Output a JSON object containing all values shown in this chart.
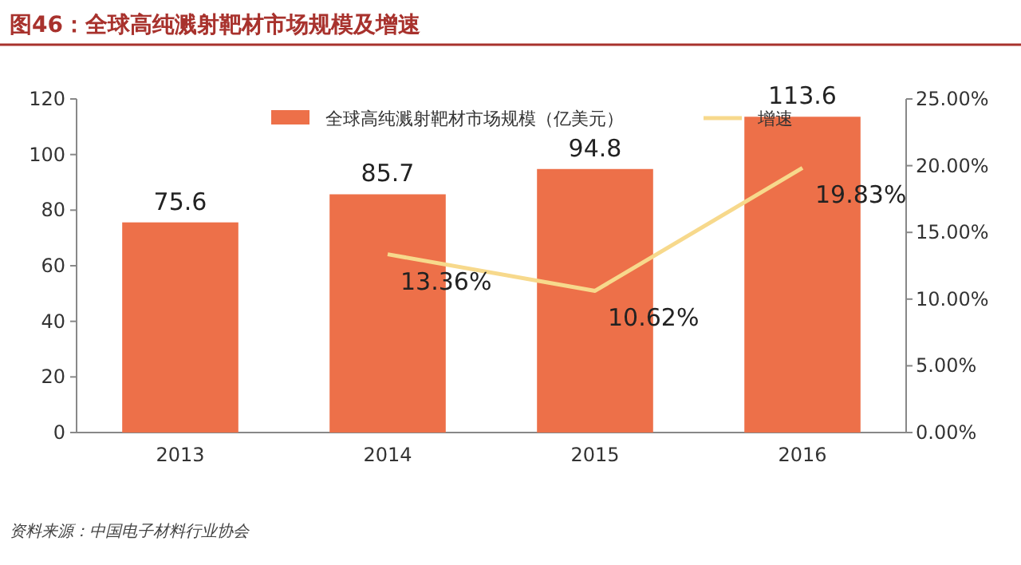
{
  "chart_data": {
    "type": "bar",
    "title": "图46：全球高纯溅射靶材市场规模及增速",
    "categories": [
      "2013",
      "2014",
      "2015",
      "2016"
    ],
    "series": [
      {
        "name": "全球高纯溅射靶材市场规模（亿美元）",
        "color": "#ed7049",
        "values": [
          75.6,
          85.7,
          94.8,
          113.6
        ],
        "value_labels": [
          "75.6",
          "85.7",
          "94.8",
          "113.6"
        ]
      },
      {
        "name": "增速",
        "type": "line",
        "axis": "y2",
        "color": "#f7d98c",
        "values": [
          null,
          13.36,
          10.62,
          19.83
        ],
        "value_labels": [
          null,
          "13.36%",
          "10.62%",
          "19.83%"
        ]
      }
    ],
    "ylim": [
      0,
      120
    ],
    "yticks": [
      0,
      20,
      40,
      60,
      80,
      100,
      120
    ],
    "y2lim": [
      0,
      25
    ],
    "y2ticks": [
      {
        "value": 0,
        "label": "0.00%"
      },
      {
        "value": 5,
        "label": "5.00%"
      },
      {
        "value": 10,
        "label": "10.00%"
      },
      {
        "value": 15,
        "label": "15.00%"
      },
      {
        "value": 20,
        "label": "20.00%"
      },
      {
        "value": 25,
        "label": "25.00%"
      }
    ],
    "legend": "top",
    "annotations": [
      "资料来源：中国电子材料行业协会"
    ]
  }
}
